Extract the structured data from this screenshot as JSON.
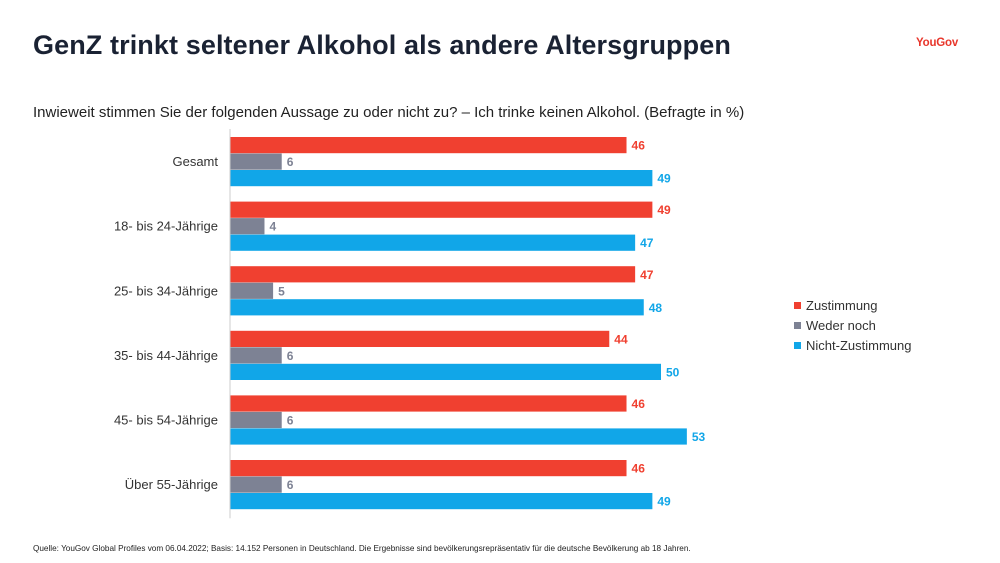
{
  "header": {
    "title": "GenZ trinkt seltener Alkohol als andere Altersgruppen",
    "logo": "YouGov"
  },
  "subtitle": "Inwieweit stimmen Sie der folgenden Aussage zu oder nicht zu? – Ich trinke keinen Alkohol. (Befragte in %)",
  "footer": "Quelle: YouGov Global Profiles vom 06.04.2022; Basis: 14.152 Personen in Deutschland. Die Ergebnisse sind bevölkerungsrepräsentativ für die deutsche Bevölkerung ab 18 Jahren.",
  "colors": {
    "zustimmung": "#f04030",
    "weder": "#7d8294",
    "nicht": "#11a6e8",
    "logo": "#e8362b",
    "axis": "#cccccc"
  },
  "chart_data": {
    "type": "bar",
    "orientation": "horizontal",
    "title": "GenZ trinkt seltener Alkohol als andere Altersgruppen",
    "xlabel": "",
    "ylabel": "",
    "xlim": [
      0,
      60
    ],
    "grid": false,
    "legend_position": "right",
    "categories": [
      "Gesamt",
      "18- bis 24-Jährige",
      "25- bis 34-Jährige",
      "35- bis 44-Jährige",
      "45- bis 54-Jährige",
      "Über 55-Jährige"
    ],
    "series": [
      {
        "name": "Zustimmung",
        "color_key": "zustimmung",
        "values": [
          46,
          49,
          47,
          44,
          46,
          46
        ]
      },
      {
        "name": "Weder noch",
        "color_key": "weder",
        "values": [
          6,
          4,
          5,
          6,
          6,
          6
        ]
      },
      {
        "name": "Nicht-Zustimmung",
        "color_key": "nicht",
        "values": [
          49,
          47,
          48,
          50,
          53,
          49
        ]
      }
    ]
  }
}
